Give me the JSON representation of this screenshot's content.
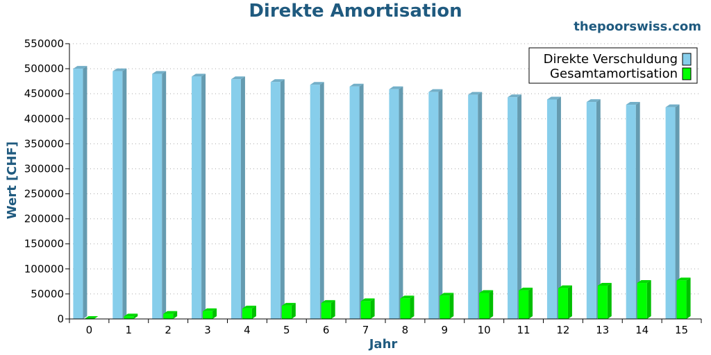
{
  "header": {
    "title": "Direkte Amortisation",
    "watermark": "thepoorswiss.com"
  },
  "chart_data": {
    "type": "bar",
    "title": "Direkte Amortisation",
    "xlabel": "Jahr",
    "ylabel": "Wert [CHF]",
    "ylim": [
      0,
      550000
    ],
    "yticks": [
      0,
      50000,
      100000,
      150000,
      200000,
      250000,
      300000,
      350000,
      400000,
      450000,
      500000,
      550000
    ],
    "categories": [
      "0",
      "1",
      "2",
      "3",
      "4",
      "5",
      "6",
      "7",
      "8",
      "9",
      "10",
      "11",
      "12",
      "13",
      "14",
      "15"
    ],
    "grid": true,
    "legend_position": "top-right",
    "series": [
      {
        "name": "Direkte Verschuldung",
        "color": "#87ceeb",
        "values": [
          500000,
          494900,
          489700,
          484400,
          479000,
          473500,
          468000,
          464500,
          459000,
          453500,
          448000,
          443000,
          438500,
          433500,
          428000,
          423000
        ]
      },
      {
        "name": "Gesamtamortisation",
        "color": "#00ff00",
        "values": [
          0,
          5100,
          10300,
          15600,
          21000,
          26500,
          32000,
          35500,
          41000,
          46500,
          52000,
          57000,
          61500,
          66500,
          72000,
          77000
        ]
      }
    ]
  }
}
